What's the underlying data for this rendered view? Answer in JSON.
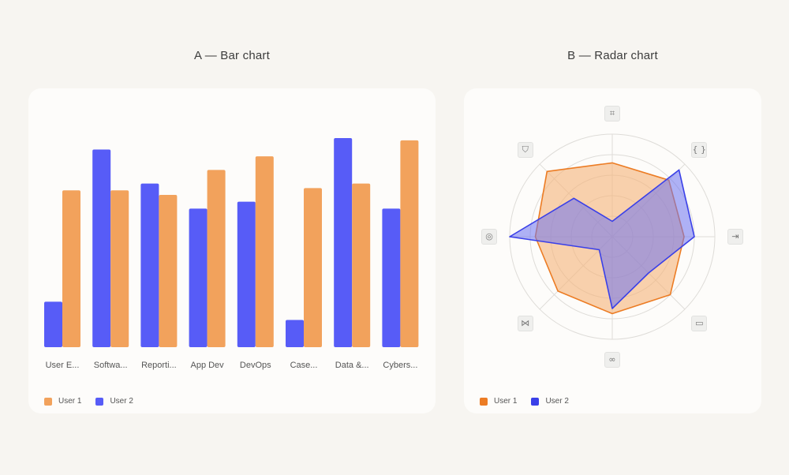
{
  "panel_a": {
    "title": "A — Bar chart"
  },
  "panel_b": {
    "title": "B — Radar chart"
  },
  "colors": {
    "user1_bar": "#f2a25c",
    "user2_bar": "#575cf7",
    "user1_radar": "#ec7c24",
    "user2_radar": "#3a40e8"
  },
  "chart_data": [
    {
      "type": "bar",
      "categories": [
        "User E...",
        "Softwa...",
        "Reporti...",
        "App Dev",
        "DevOps",
        "Case...",
        "Data &...",
        "Cybers..."
      ],
      "series": [
        {
          "name": "User 1",
          "values": [
            69,
            69,
            67,
            78,
            84,
            70,
            72,
            91
          ]
        },
        {
          "name": "User 2",
          "values": [
            20,
            87,
            72,
            61,
            64,
            12,
            92,
            61
          ]
        }
      ],
      "ylim": [
        0,
        100
      ],
      "grid": false,
      "legend": "bottom-left"
    },
    {
      "type": "radar",
      "axes": [
        "process-icon",
        "code-icon",
        "deploy-icon",
        "window-icon",
        "infinity-icon",
        "network-icon",
        "database-icon",
        "shield-icon"
      ],
      "axis_glyphs": [
        "⌗",
        "{ }",
        "⇥",
        "▭",
        "∞",
        "⋈",
        "◎",
        "⛉"
      ],
      "series": [
        {
          "name": "User 1",
          "values": [
            72,
            78,
            70,
            80,
            75,
            75,
            75,
            90
          ]
        },
        {
          "name": "User 2",
          "values": [
            15,
            92,
            80,
            50,
            70,
            18,
            100,
            53
          ]
        }
      ],
      "rlim": [
        0,
        100
      ],
      "rings": 5,
      "legend": "bottom-left"
    }
  ],
  "legend_labels": [
    "User 1",
    "User 2"
  ]
}
